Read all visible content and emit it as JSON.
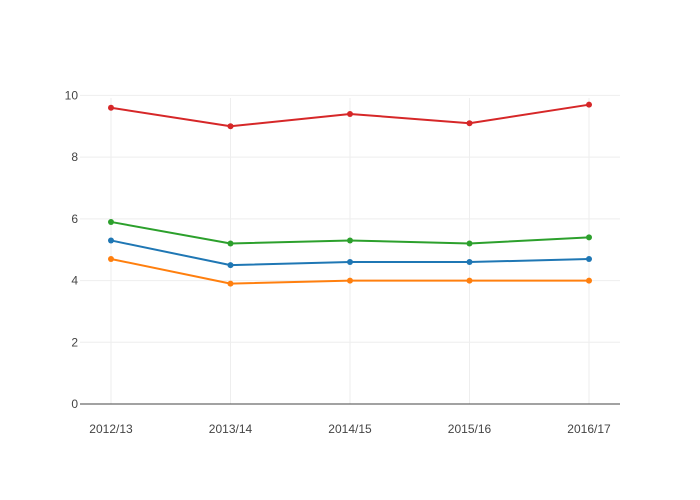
{
  "chart_data": {
    "type": "line",
    "title": "",
    "xlabel": "",
    "ylabel": "",
    "categories": [
      "2012/13",
      "2013/14",
      "2014/15",
      "2015/16",
      "2016/17"
    ],
    "ylim": [
      0,
      10.5
    ],
    "yticks": [
      0,
      2,
      4,
      6,
      8,
      10
    ],
    "grid": true,
    "legend": "none",
    "series": [
      {
        "color": "#d62728",
        "values": [
          9.6,
          9.0,
          9.4,
          9.1,
          9.7
        ]
      },
      {
        "color": "#2ca02c",
        "values": [
          5.9,
          5.2,
          5.3,
          5.2,
          5.4
        ]
      },
      {
        "color": "#1f77b4",
        "values": [
          5.3,
          4.5,
          4.6,
          4.6,
          4.7
        ]
      },
      {
        "color": "#ff7f0e",
        "values": [
          4.7,
          3.9,
          4.0,
          4.0,
          4.0
        ]
      }
    ]
  }
}
